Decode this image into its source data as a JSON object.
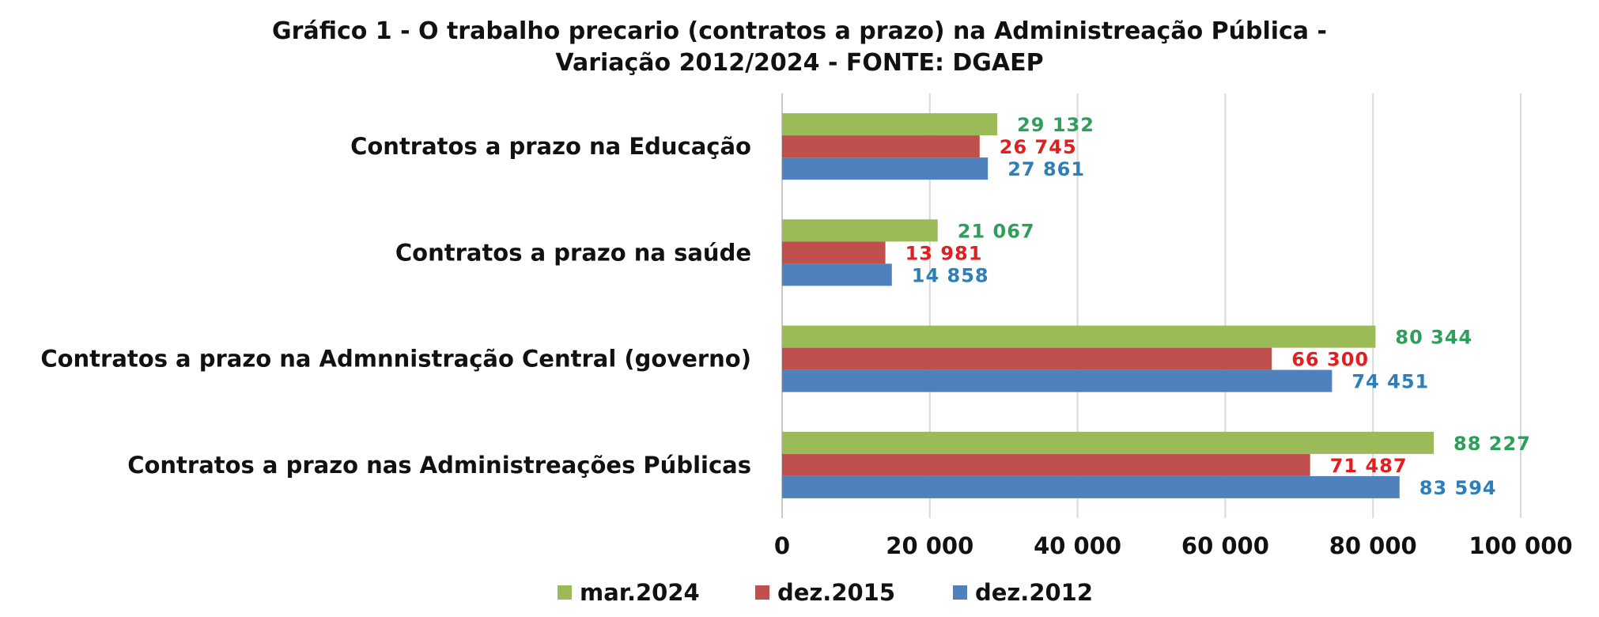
{
  "chart_data": {
    "type": "bar",
    "orientation": "horizontal",
    "title_line1": "Gráfico 1 - O trabalho precario (contratos a prazo) na Administreação Pública -",
    "title_line2": "Variação 2012/2024 - FONTE: DGAEP",
    "categories": [
      "Contratos a prazo na Educação",
      "Contratos a prazo na saúde",
      "Contratos a prazo na Admnnistração Central (governo)",
      "Contratos a prazo nas Administreações Públicas"
    ],
    "series": [
      {
        "name": "mar.2024",
        "color": "#9bbb59",
        "label_color": "#2e9e5a",
        "values": [
          29132,
          21067,
          80344,
          88227
        ],
        "labels": [
          "29 132",
          "21 067",
          "80 344",
          "88 227"
        ]
      },
      {
        "name": "dez.2015",
        "color": "#c0504d",
        "label_color": "#e02020",
        "values": [
          26745,
          13981,
          66300,
          71487
        ],
        "labels": [
          "26 745",
          "13 981",
          "66 300",
          "71 487"
        ]
      },
      {
        "name": "dez.2012",
        "color": "#4f81bd",
        "label_color": "#2e7fb8",
        "values": [
          27861,
          14858,
          74451,
          83594
        ],
        "labels": [
          "27 861",
          "14 858",
          "74 451",
          "83 594"
        ]
      }
    ],
    "xlim": [
      0,
      100000
    ],
    "x_ticks": [
      0,
      20000,
      40000,
      60000,
      80000,
      100000
    ],
    "x_tick_labels": [
      "0",
      "20 000",
      "40 000",
      "60 000",
      "80 000",
      "100 000"
    ],
    "grid": "vertical",
    "legend_position": "bottom"
  }
}
